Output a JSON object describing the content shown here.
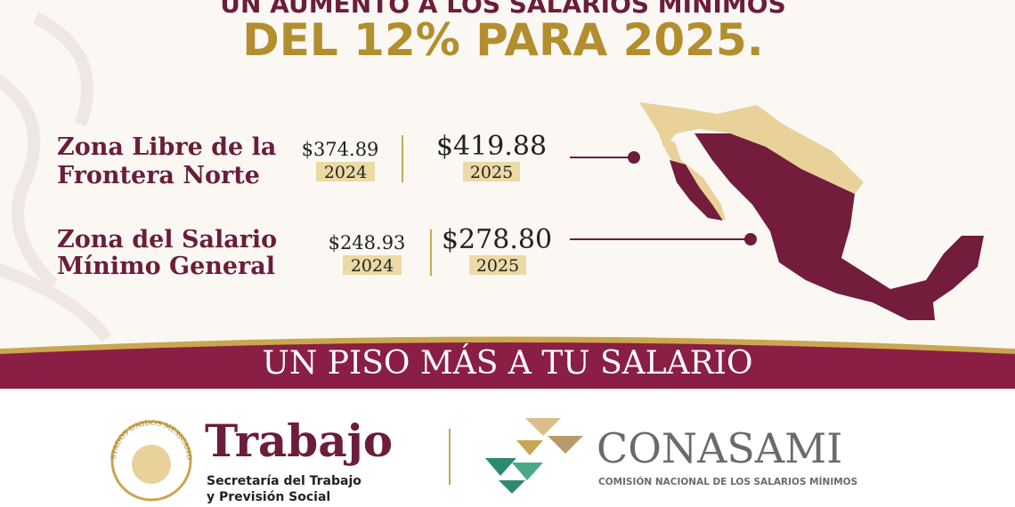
{
  "header": {
    "line1": "UN AUMENTO A LOS SALARIOS MÍNIMOS",
    "line2": "DEL 12% PARA 2025."
  },
  "zones": [
    {
      "name_lines": [
        "Zona Libre de la",
        "Frontera Norte"
      ],
      "old_value": "$374.89",
      "old_year": "2024",
      "new_value": "$419.88",
      "new_year": "2025"
    },
    {
      "name_lines": [
        "Zona del Salario",
        "Mínimo General"
      ],
      "old_value": "$248.93",
      "old_year": "2024",
      "new_value": "$278.80",
      "new_year": "2025"
    }
  ],
  "banner": {
    "text": "UN PISO MÁS A TU SALARIO"
  },
  "footer": {
    "seal_text": "ESTADOS UNIDOS MEXICANOS",
    "trabajo": {
      "title": "Trabajo",
      "subtitle_lines": [
        "Secretaría del Trabajo",
        "y Previsión Social"
      ]
    },
    "conasami": {
      "title": "CONASAMI",
      "subtitle": "COMISIÓN NACIONAL DE LOS SALARIOS MÍNIMOS"
    }
  }
}
